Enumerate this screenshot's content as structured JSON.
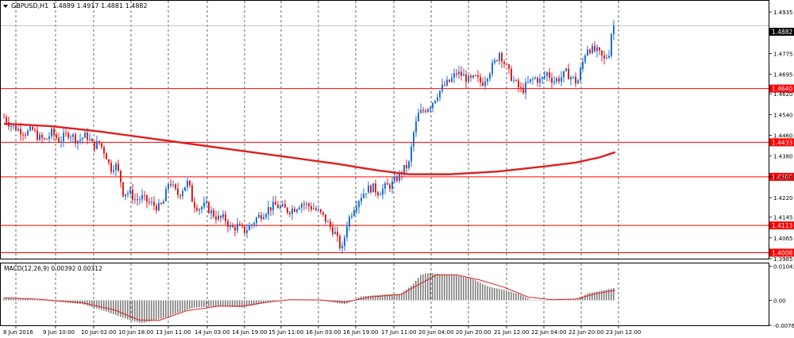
{
  "main_panel": {
    "symbol_timeframe": "GBPUSD,H1",
    "ohlc": "1.4889 1.4917 1.4881 1.4882",
    "current_price_label": "1.4882"
  },
  "macd_panel": {
    "label": "MACD(12,26,9) 0.00392 0.00312"
  },
  "chart_data": [
    {
      "type": "candlestick",
      "symbol": "GBPUSD",
      "timeframe": "H1",
      "ylim": [
        1.3985,
        1.4975
      ],
      "y_ticks": [
        "1.4935",
        "1.4855",
        "1.4775",
        "1.4695",
        "1.4620",
        "1.4540",
        "1.4460",
        "1.4380",
        "1.4300",
        "1.4220",
        "1.4145",
        "1.4065",
        "1.3985"
      ],
      "x_ticks": [
        "8 Jun 2016",
        "9 Jun 10:00",
        "10 Jun 02:00",
        "10 Jun 18:00",
        "13 Jun 11:00",
        "14 Jun 03:00",
        "14 Jun 19:00",
        "15 Jun 11:00",
        "16 Jun 03:00",
        "16 Jun 19:00",
        "17 Jun 11:00",
        "20 Jun 04:00",
        "20 Jun 20:00",
        "21 Jun 12:00",
        "22 Jun 04:00",
        "22 Jun 20:00",
        "23 Jun 12:00"
      ],
      "current_price": 1.4882,
      "horizontal_levels": [
        "1.4640",
        "1.4433",
        "1.4300",
        "1.4113",
        "1.4008"
      ],
      "colors": {
        "bull": "#1e6fd6",
        "bear": "#e01e1e",
        "level": "#ff0000",
        "ma": "#e01e1e",
        "grid": "#000000"
      },
      "grid": true,
      "close_path": [
        [
          0,
          1.453
        ],
        [
          10,
          1.4495
        ],
        [
          20,
          1.448
        ],
        [
          28,
          1.447
        ],
        [
          36,
          1.448
        ],
        [
          44,
          1.445
        ],
        [
          52,
          1.444
        ],
        [
          60,
          1.447
        ],
        [
          70,
          1.444
        ],
        [
          82,
          1.447
        ],
        [
          92,
          1.444
        ],
        [
          104,
          1.446
        ],
        [
          112,
          1.442
        ],
        [
          120,
          1.443
        ],
        [
          128,
          1.439
        ],
        [
          134,
          1.433
        ],
        [
          140,
          1.435
        ],
        [
          146,
          1.43
        ],
        [
          150,
          1.424
        ],
        [
          158,
          1.424
        ],
        [
          166,
          1.421
        ],
        [
          174,
          1.422
        ],
        [
          182,
          1.42
        ],
        [
          190,
          1.419
        ],
        [
          196,
          1.418
        ],
        [
          202,
          1.421
        ],
        [
          208,
          1.429
        ],
        [
          214,
          1.425
        ],
        [
          220,
          1.423
        ],
        [
          226,
          1.426
        ],
        [
          232,
          1.428
        ],
        [
          238,
          1.42
        ],
        [
          246,
          1.418
        ],
        [
          254,
          1.419
        ],
        [
          262,
          1.416
        ],
        [
          270,
          1.414
        ],
        [
          278,
          1.414
        ],
        [
          286,
          1.41
        ],
        [
          294,
          1.411
        ],
        [
          302,
          1.409
        ],
        [
          310,
          1.411
        ],
        [
          318,
          1.414
        ],
        [
          326,
          1.416
        ],
        [
          334,
          1.418
        ],
        [
          342,
          1.419
        ],
        [
          350,
          1.418
        ],
        [
          358,
          1.417
        ],
        [
          366,
          1.418
        ],
        [
          374,
          1.42
        ],
        [
          382,
          1.419
        ],
        [
          390,
          1.418
        ],
        [
          398,
          1.416
        ],
        [
          404,
          1.414
        ],
        [
          410,
          1.411
        ],
        [
          416,
          1.409
        ],
        [
          422,
          1.404
        ],
        [
          426,
          1.402
        ],
        [
          432,
          1.412
        ],
        [
          440,
          1.418
        ],
        [
          448,
          1.422
        ],
        [
          456,
          1.425
        ],
        [
          464,
          1.426
        ],
        [
          472,
          1.424
        ],
        [
          480,
          1.426
        ],
        [
          488,
          1.427
        ],
        [
          496,
          1.43
        ],
        [
          504,
          1.433
        ],
        [
          510,
          1.435
        ],
        [
          516,
          1.447
        ],
        [
          522,
          1.454
        ],
        [
          530,
          1.456
        ],
        [
          538,
          1.458
        ],
        [
          546,
          1.462
        ],
        [
          554,
          1.465
        ],
        [
          562,
          1.467
        ],
        [
          570,
          1.47
        ],
        [
          578,
          1.469
        ],
        [
          586,
          1.467
        ],
        [
          594,
          1.468
        ],
        [
          602,
          1.466
        ],
        [
          610,
          1.47
        ],
        [
          618,
          1.474
        ],
        [
          624,
          1.478
        ],
        [
          630,
          1.474
        ],
        [
          636,
          1.47
        ],
        [
          644,
          1.466
        ],
        [
          652,
          1.463
        ],
        [
          660,
          1.466
        ],
        [
          668,
          1.468
        ],
        [
          676,
          1.467
        ],
        [
          684,
          1.47
        ],
        [
          692,
          1.467
        ],
        [
          700,
          1.468
        ],
        [
          708,
          1.47
        ],
        [
          716,
          1.468
        ],
        [
          722,
          1.466
        ],
        [
          728,
          1.473
        ],
        [
          734,
          1.48
        ],
        [
          740,
          1.479
        ],
        [
          748,
          1.478
        ],
        [
          756,
          1.475
        ],
        [
          762,
          1.478
        ],
        [
          766,
          1.488
        ],
        [
          770,
          1.4882
        ]
      ],
      "moving_average": [
        [
          0,
          1.4505
        ],
        [
          60,
          1.4495
        ],
        [
          120,
          1.4475
        ],
        [
          180,
          1.445
        ],
        [
          240,
          1.4425
        ],
        [
          300,
          1.44
        ],
        [
          360,
          1.4375
        ],
        [
          420,
          1.435
        ],
        [
          470,
          1.4325
        ],
        [
          510,
          1.431
        ],
        [
          560,
          1.431
        ],
        [
          620,
          1.432
        ],
        [
          680,
          1.434
        ],
        [
          720,
          1.4355
        ],
        [
          750,
          1.4375
        ],
        [
          770,
          1.4395
        ]
      ]
    },
    {
      "type": "bar",
      "name": "MACD(12,26,9)",
      "ylim": [
        -0.00765,
        0.0113
      ],
      "y_ticks": [
        "0.01043",
        "0.00",
        "-0.00765"
      ],
      "histogram_path": [
        [
          0,
          0.0006
        ],
        [
          30,
          0.0004
        ],
        [
          60,
          -0.0002
        ],
        [
          100,
          -0.0012
        ],
        [
          130,
          -0.0035
        ],
        [
          160,
          -0.0062
        ],
        [
          175,
          -0.007
        ],
        [
          200,
          -0.0055
        ],
        [
          240,
          -0.0022
        ],
        [
          270,
          -0.0018
        ],
        [
          300,
          -0.0022
        ],
        [
          330,
          -0.0008
        ],
        [
          360,
          0.0002
        ],
        [
          390,
          0.0003
        ],
        [
          420,
          -0.0008
        ],
        [
          430,
          -0.0012
        ],
        [
          450,
          0.0012
        ],
        [
          480,
          0.0018
        ],
        [
          500,
          0.002
        ],
        [
          515,
          0.0048
        ],
        [
          525,
          0.0078
        ],
        [
          535,
          0.0084
        ],
        [
          550,
          0.008
        ],
        [
          570,
          0.0076
        ],
        [
          590,
          0.0066
        ],
        [
          610,
          0.0042
        ],
        [
          630,
          0.0032
        ],
        [
          650,
          0.0018
        ],
        [
          665,
          0.0
        ],
        [
          700,
          0.0002
        ],
        [
          725,
          0.0005
        ],
        [
          735,
          0.0022
        ],
        [
          750,
          0.0028
        ],
        [
          770,
          0.0039
        ]
      ],
      "signal_path": [
        [
          0,
          0.0008
        ],
        [
          40,
          0.0004
        ],
        [
          100,
          -0.0008
        ],
        [
          140,
          -0.003
        ],
        [
          170,
          -0.006
        ],
        [
          195,
          -0.0062
        ],
        [
          230,
          -0.0032
        ],
        [
          270,
          -0.0018
        ],
        [
          300,
          -0.0018
        ],
        [
          330,
          -0.0006
        ],
        [
          360,
          0.0002
        ],
        [
          400,
          0.0001
        ],
        [
          430,
          -0.0006
        ],
        [
          460,
          0.001
        ],
        [
          500,
          0.0018
        ],
        [
          520,
          0.0045
        ],
        [
          545,
          0.0078
        ],
        [
          570,
          0.0078
        ],
        [
          600,
          0.0062
        ],
        [
          630,
          0.004
        ],
        [
          660,
          0.001
        ],
        [
          690,
          0.0002
        ],
        [
          720,
          0.0004
        ],
        [
          745,
          0.002
        ],
        [
          770,
          0.0031
        ]
      ],
      "colors": {
        "histogram": "#808080",
        "signal": "#e01e1e"
      }
    }
  ]
}
